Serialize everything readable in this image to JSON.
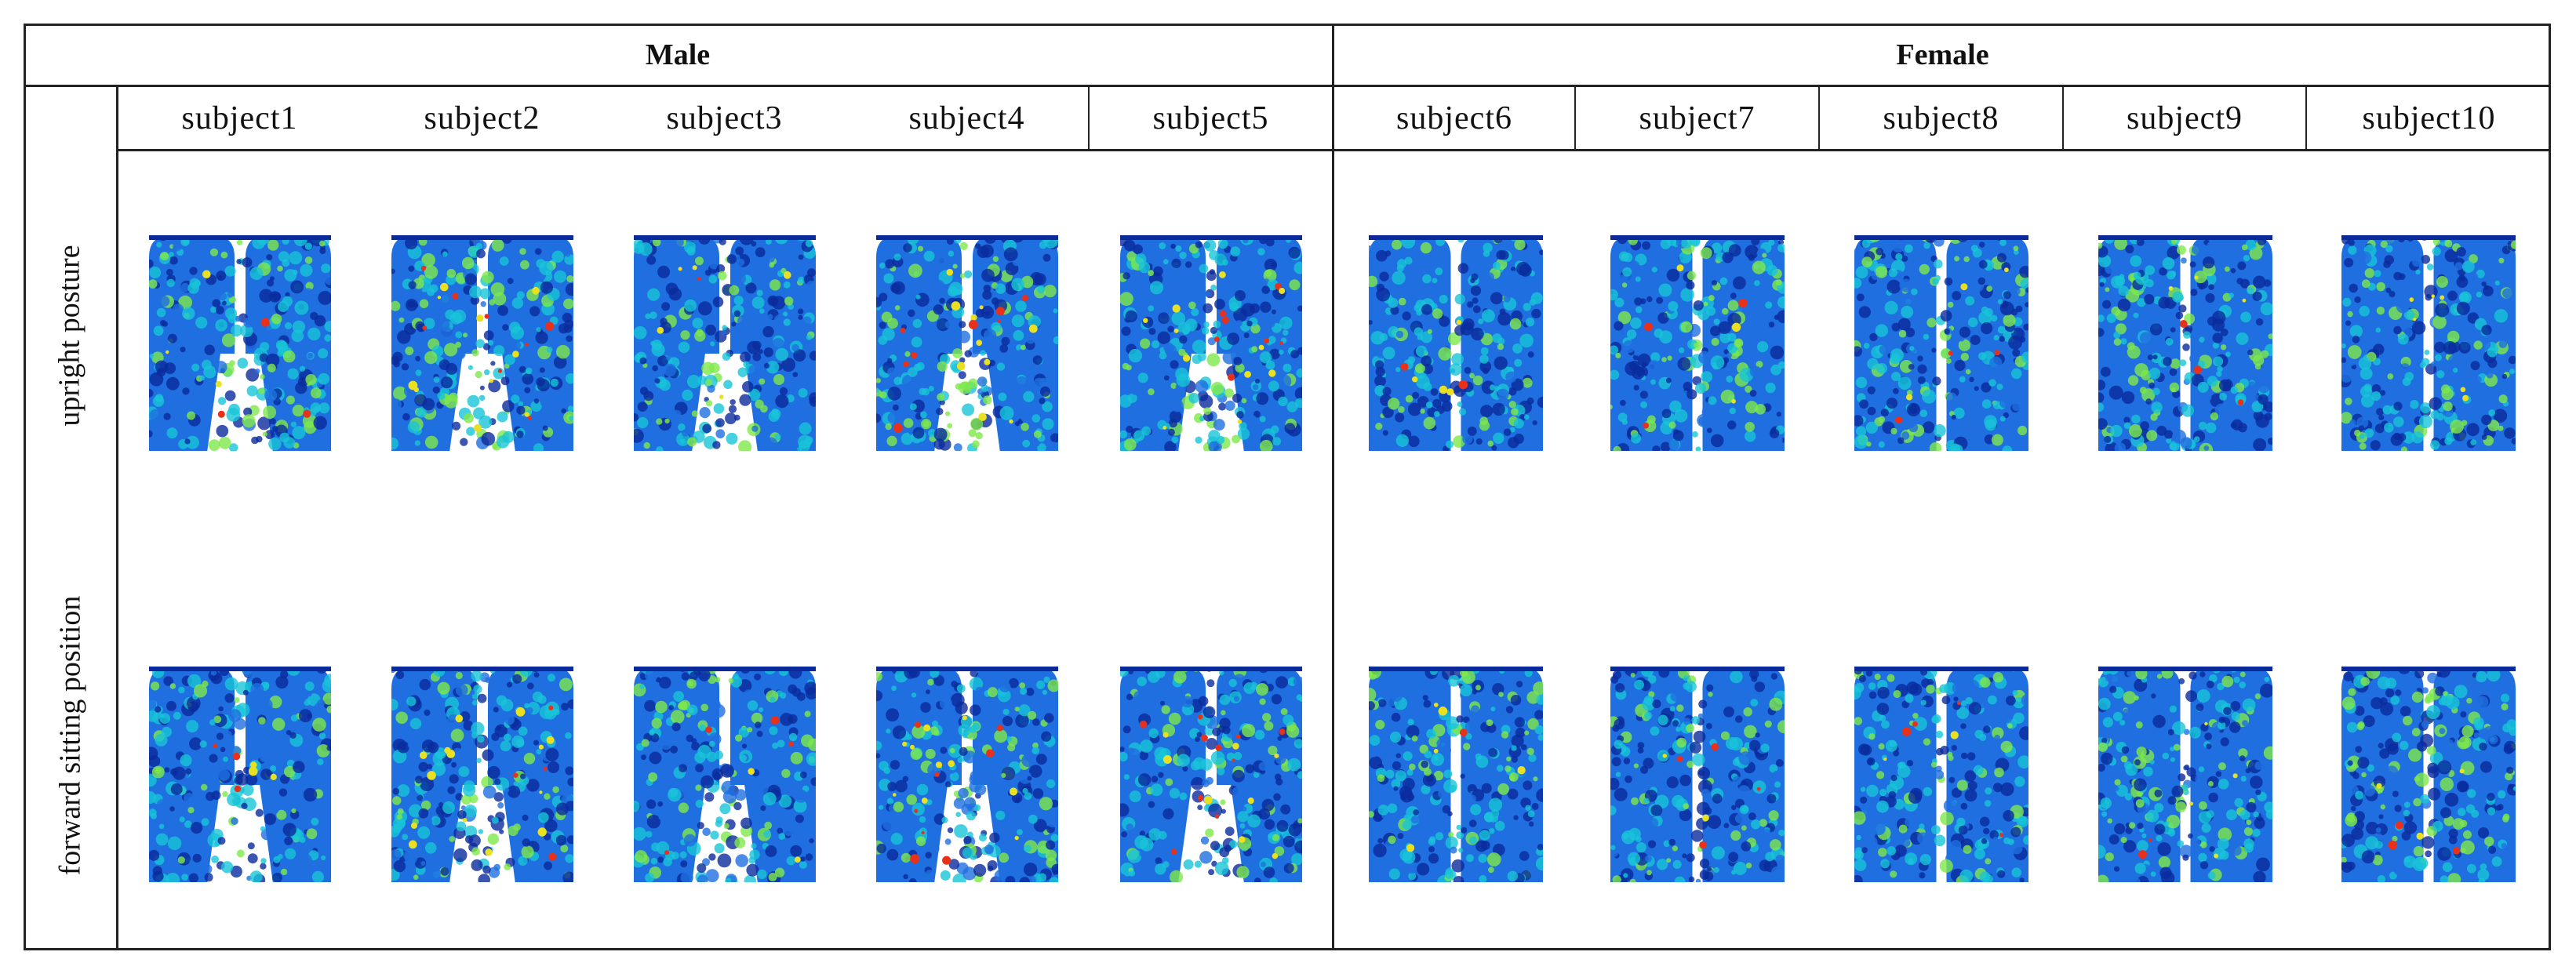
{
  "groups": [
    {
      "label": "Male"
    },
    {
      "label": "Female"
    }
  ],
  "subjects": [
    {
      "label": "subject1",
      "group": "Male"
    },
    {
      "label": "subject2",
      "group": "Male"
    },
    {
      "label": "subject3",
      "group": "Male"
    },
    {
      "label": "subject4",
      "group": "Male"
    },
    {
      "label": "subject5",
      "group": "Male"
    },
    {
      "label": "subject6",
      "group": "Female"
    },
    {
      "label": "subject7",
      "group": "Female"
    },
    {
      "label": "subject8",
      "group": "Female"
    },
    {
      "label": "subject9",
      "group": "Female"
    },
    {
      "label": "subject10",
      "group": "Female"
    }
  ],
  "rows": [
    {
      "label": "upright posture"
    },
    {
      "label": "forward sitting position"
    }
  ],
  "colors": {
    "border": "#222222",
    "pressure_low": "#0a2a9c",
    "pressure_mid_low": "#1f6fe0",
    "pressure_mid": "#18c4d8",
    "pressure_high": "#7ee84a",
    "pressure_peak": "#e8e020",
    "pressure_max": "#e8301a"
  }
}
